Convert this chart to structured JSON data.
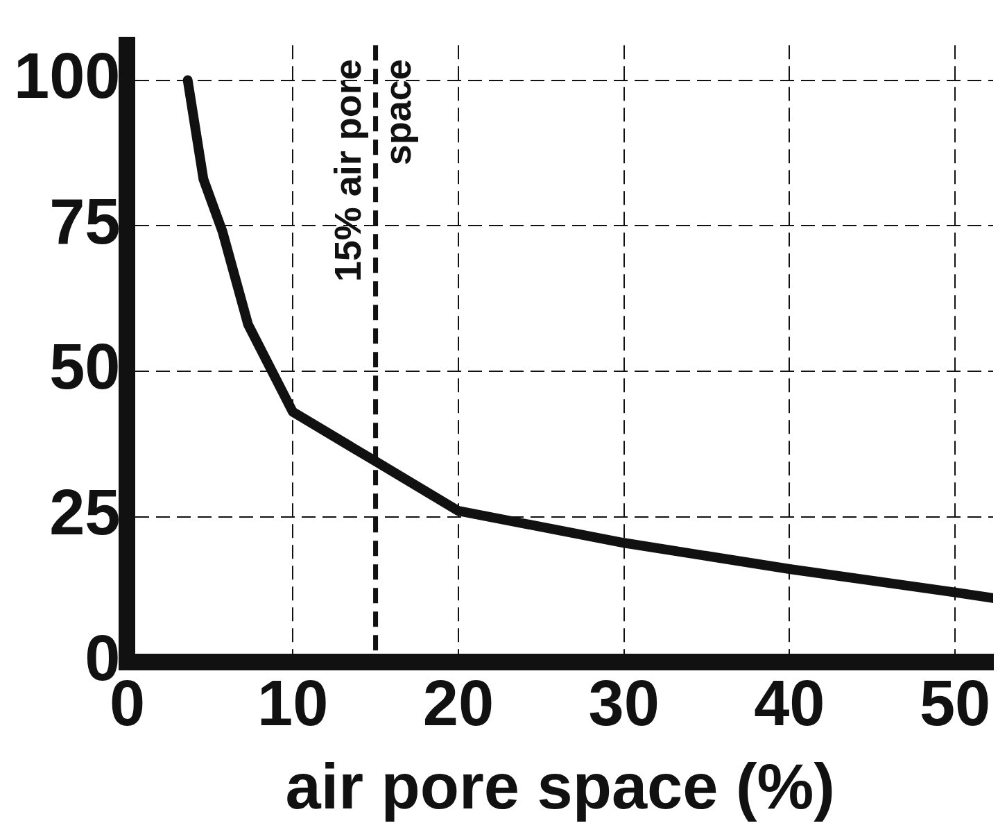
{
  "chart_data": {
    "type": "line",
    "xlabel": "air pore space (%)",
    "x": [
      3.65,
      4.6,
      5.75,
      7.3,
      10,
      15,
      20,
      30,
      40,
      50,
      52.3
    ],
    "series": [
      {
        "color": "#111111",
        "values": [
          100,
          83,
          74,
          58,
          43,
          34.5,
          26,
          20.5,
          16,
          12,
          11
        ]
      }
    ],
    "xlim": [
      0,
      52.3
    ],
    "xticks": [
      0,
      10,
      20,
      30,
      40,
      50
    ],
    "ylim": [
      0,
      106
    ],
    "yticks": [
      0,
      25,
      50,
      75,
      100
    ],
    "grid": true,
    "legend": false,
    "marker": "none",
    "line_style": "solid",
    "ref_lines": [
      {
        "axis": "x",
        "value": 15,
        "label": "15% air pore space",
        "color": "#111111",
        "line_style": "dashed"
      }
    ]
  }
}
